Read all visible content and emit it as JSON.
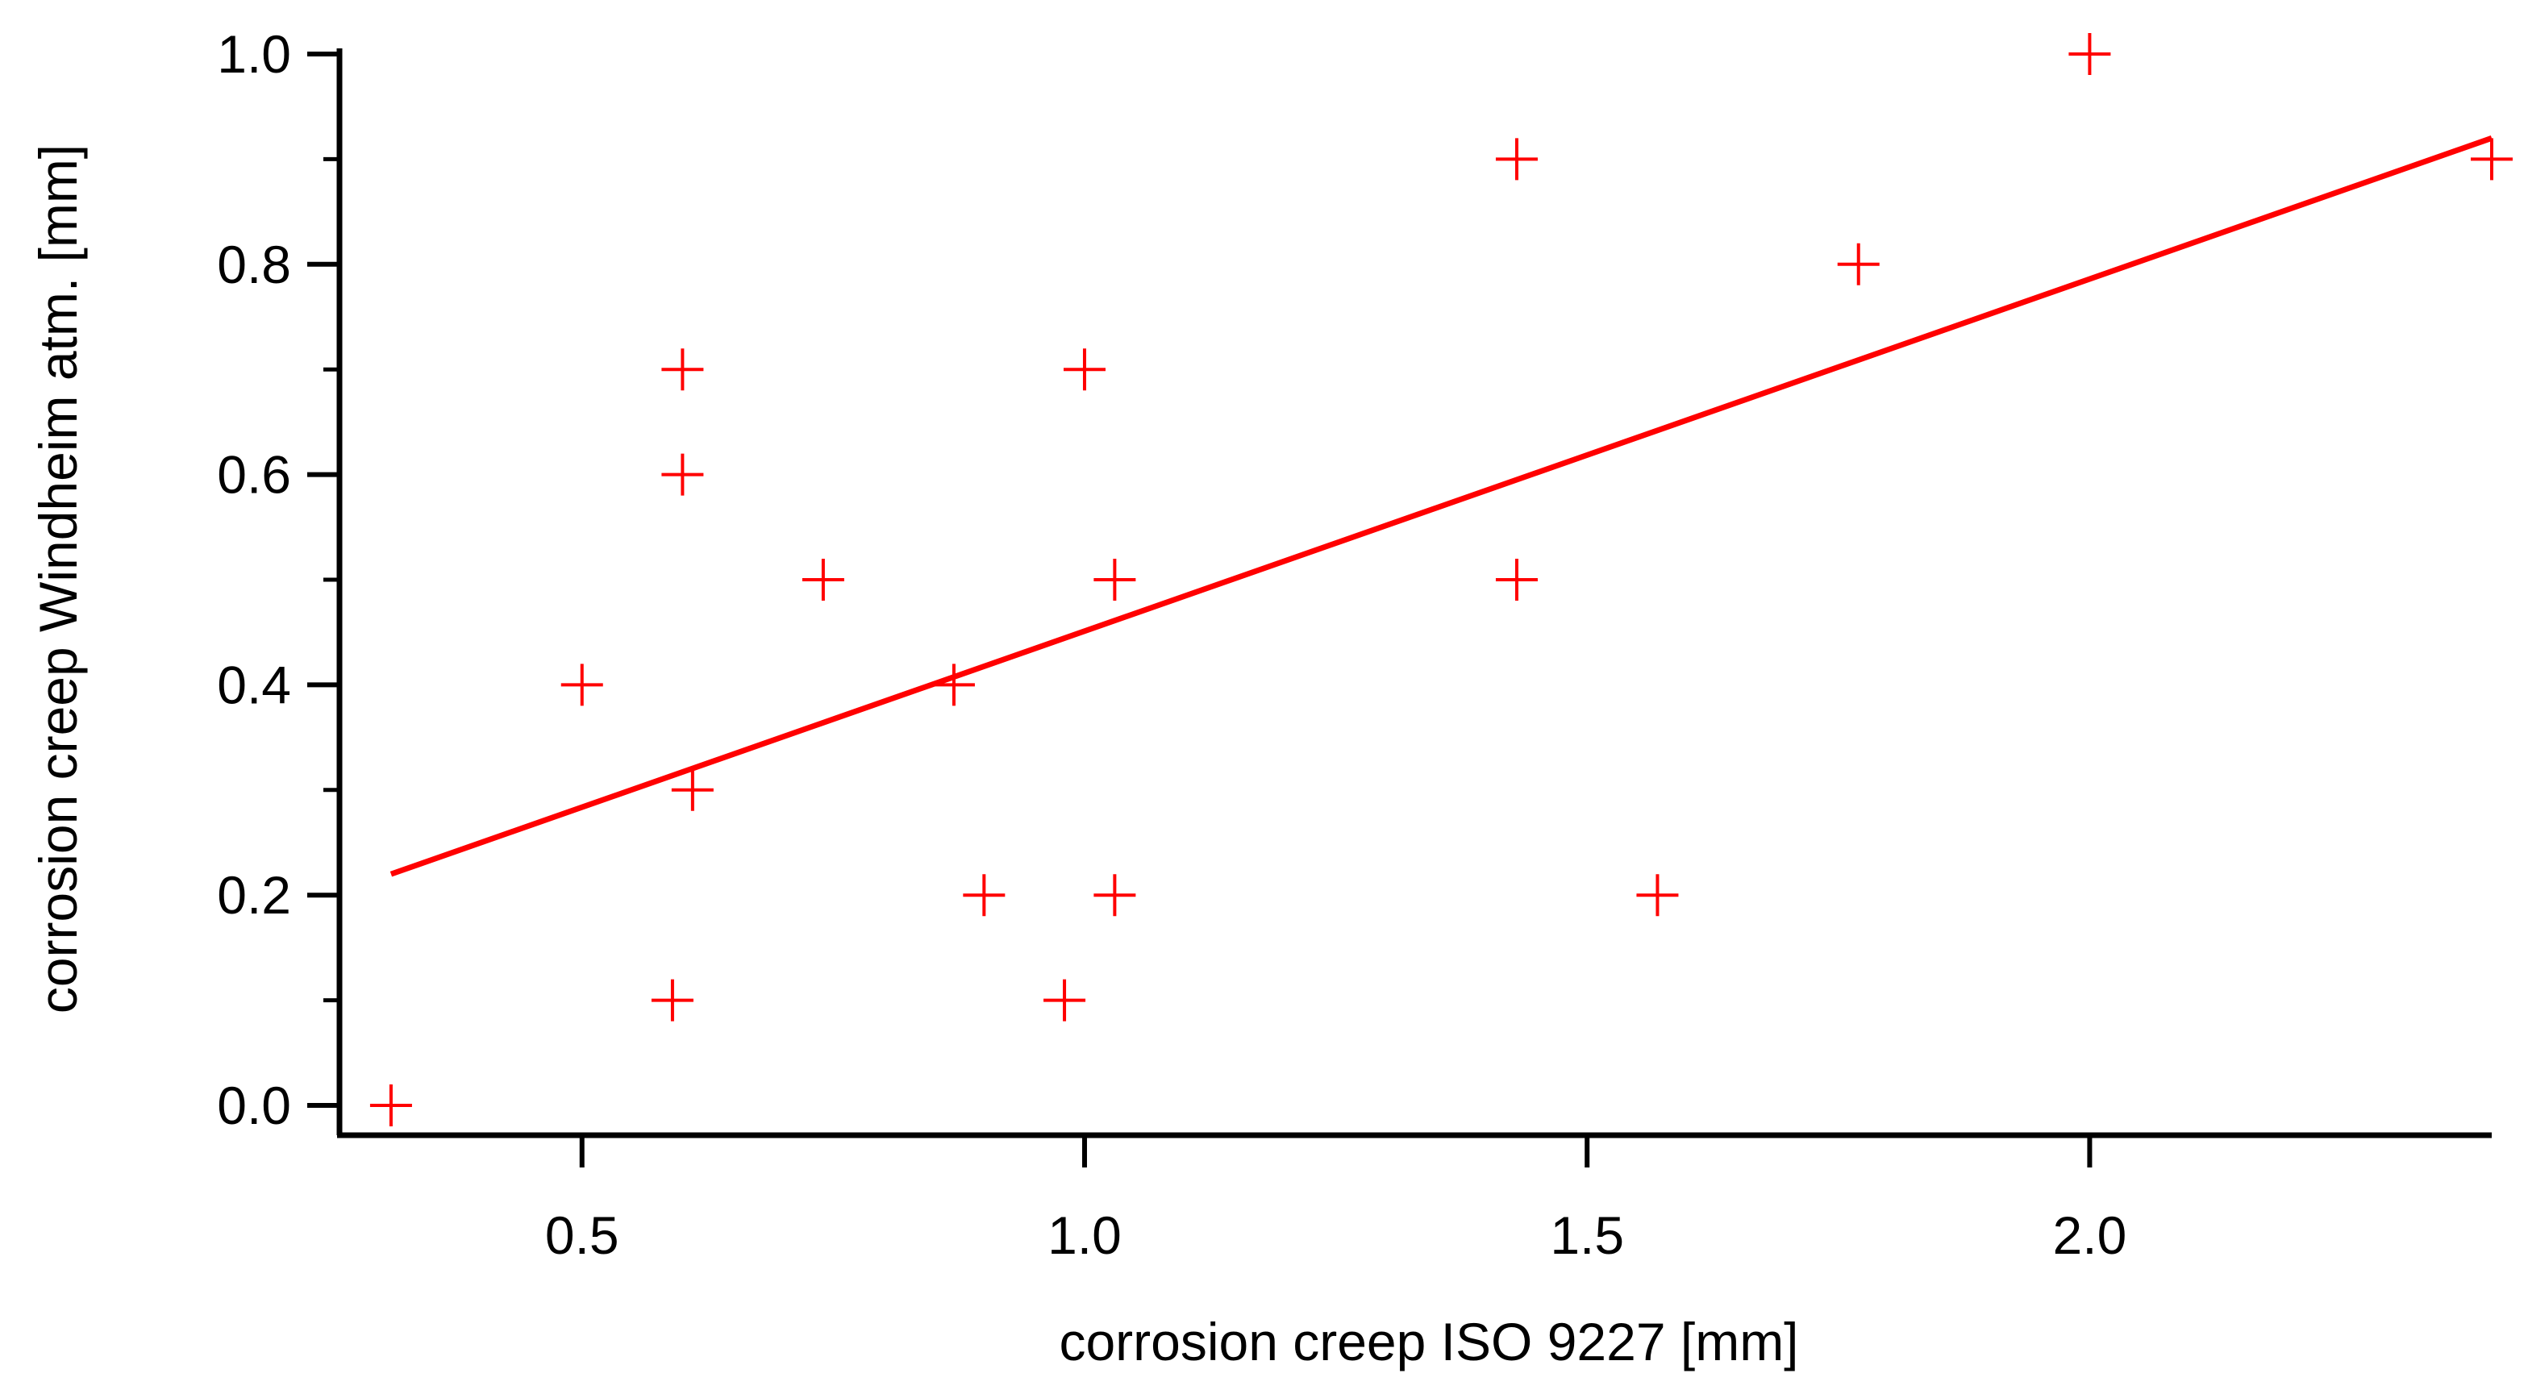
{
  "chart_data": {
    "type": "scatter",
    "xlabel": "corrosion creep ISO 9227 [mm]",
    "ylabel": "corrosion creep Windheim atm. [mm]",
    "xlim": [
      0.29,
      2.4
    ],
    "ylim": [
      0.0,
      1.0
    ],
    "x_ticks": [
      {
        "value": 0.5,
        "label": "0.5"
      },
      {
        "value": 1.0,
        "label": "1.0"
      },
      {
        "value": 1.5,
        "label": "1.5"
      },
      {
        "value": 2.0,
        "label": "2.0"
      }
    ],
    "y_ticks": [
      {
        "value": 0.0,
        "label": "0.0"
      },
      {
        "value": 0.2,
        "label": "0.2"
      },
      {
        "value": 0.4,
        "label": "0.4"
      },
      {
        "value": 0.6,
        "label": "0.6"
      },
      {
        "value": 0.8,
        "label": "0.8"
      },
      {
        "value": 1.0,
        "label": "1.0"
      }
    ],
    "y_minor_ticks": [
      0.1,
      0.3,
      0.5,
      0.7,
      0.9
    ],
    "grid": false,
    "marker": "plus",
    "color": "#ff0000",
    "points": [
      {
        "x": 0.31,
        "y": 0.0
      },
      {
        "x": 0.5,
        "y": 0.4
      },
      {
        "x": 0.59,
        "y": 0.1
      },
      {
        "x": 0.6,
        "y": 0.7
      },
      {
        "x": 0.6,
        "y": 0.6
      },
      {
        "x": 0.61,
        "y": 0.3
      },
      {
        "x": 0.74,
        "y": 0.5
      },
      {
        "x": 0.87,
        "y": 0.4
      },
      {
        "x": 0.9,
        "y": 0.2
      },
      {
        "x": 0.98,
        "y": 0.1
      },
      {
        "x": 1.0,
        "y": 0.7
      },
      {
        "x": 1.03,
        "y": 0.5
      },
      {
        "x": 1.03,
        "y": 0.2
      },
      {
        "x": 1.43,
        "y": 0.9
      },
      {
        "x": 1.43,
        "y": 0.5
      },
      {
        "x": 1.57,
        "y": 0.2
      },
      {
        "x": 1.77,
        "y": 0.8
      },
      {
        "x": 2.0,
        "y": 1.0
      },
      {
        "x": 2.4,
        "y": 0.9
      }
    ],
    "fit_line": {
      "type": "linear",
      "x": [
        0.31,
        2.4
      ],
      "y": [
        0.22,
        0.92
      ]
    }
  }
}
